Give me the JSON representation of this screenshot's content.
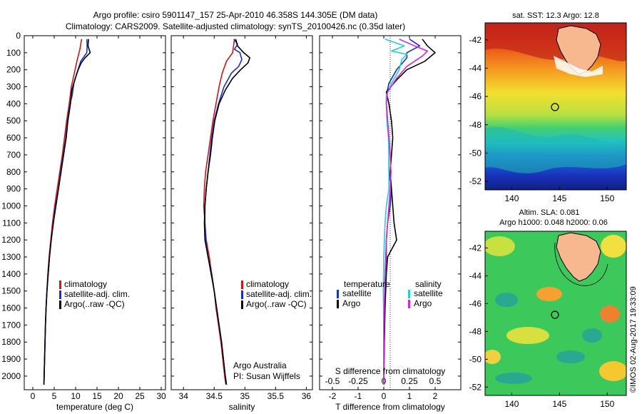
{
  "header": {
    "line1": "Argo profile: csiro 5901147_157 25-Apr-2010 46.358S 144.305E (DM data)",
    "line2": "Climatology: CARS2009. Satellite-adjusted climatology: synTS_20100426.nc (0.35d later)"
  },
  "colors": {
    "climatology": "#e01010",
    "satellite": "#1030e0",
    "argo": "#000000",
    "temperature_satellite": "#1030e0",
    "temperature_argo": "#000000",
    "salinity_satellite": "#20d0e0",
    "salinity_argo": "#e020e0"
  },
  "axes": {
    "depth_ticks": [
      "0",
      "100",
      "200",
      "300",
      "400",
      "500",
      "600",
      "700",
      "800",
      "900",
      "1000",
      "1100",
      "1200",
      "1300",
      "1400",
      "1500",
      "1600",
      "1700",
      "1800",
      "1900",
      "2000"
    ],
    "temperature": {
      "xlabel": "temperature (deg C)",
      "ticks": [
        "0",
        "5",
        "10",
        "15",
        "20",
        "25",
        "30"
      ]
    },
    "salinity": {
      "xlabel": "salinity",
      "ticks": [
        "34",
        "34.5",
        "35",
        "35.5",
        "36"
      ]
    },
    "difference": {
      "xlabel": "T difference from climatology",
      "top_label": "S difference from climatology",
      "t_ticks": [
        "-2",
        "-1",
        "0",
        "1",
        "2"
      ],
      "s_ticks": [
        "-0.5",
        "-0.25",
        "0",
        "0.25",
        "0.5"
      ]
    }
  },
  "legends": {
    "temperature": [
      "climatology",
      "satellite-adj. clim.",
      "Argo(..raw -QC)"
    ],
    "salinity": [
      "climatology",
      "satellite-adj. clim.",
      "Argo(..raw -QC)"
    ],
    "difference": {
      "temperature_title": "temperature",
      "salinity_title": "salinity",
      "temperature_items": [
        "satellite",
        "Argo"
      ],
      "salinity_items": [
        "satellite",
        "Argo"
      ]
    }
  },
  "credit": {
    "line1": "Argo Australia",
    "line2": "PI: Susan Wijffels"
  },
  "maps": {
    "sst": {
      "title": "sat. SST: 12.3 Argo: 12.8"
    },
    "sla": {
      "title1": "Altim. SLA: 0.081",
      "title2": "Argo h1000: 0.048 h2000: 0.06"
    },
    "lat_ticks": [
      "-42",
      "-44",
      "-46",
      "-48",
      "-50",
      "-52"
    ],
    "lon_ticks": [
      "140",
      "145",
      "150"
    ],
    "float_position": {
      "lon": 144.305,
      "lat": -46.358
    }
  },
  "stamp": "©IMOS 02-Aug-2017 19:33:09",
  "chart_data": [
    {
      "type": "line",
      "panel": "temperature",
      "xlabel": "temperature (deg C)",
      "ylabel": "",
      "xlim": [
        -2,
        31
      ],
      "ylim": [
        2080,
        0
      ],
      "series": [
        {
          "name": "climatology",
          "values": [
            [
              11.4,
              20
            ],
            [
              11.0,
              80
            ],
            [
              10.3,
              150
            ],
            [
              9.7,
              220
            ],
            [
              9.0,
              300
            ],
            [
              8.5,
              400
            ],
            [
              7.9,
              500
            ],
            [
              7.4,
              600
            ],
            [
              6.9,
              700
            ],
            [
              6.3,
              800
            ],
            [
              5.7,
              900
            ],
            [
              5.1,
              1000
            ],
            [
              4.6,
              1100
            ],
            [
              4.2,
              1200
            ],
            [
              3.8,
              1300
            ],
            [
              3.5,
              1400
            ],
            [
              3.3,
              1500
            ],
            [
              3.1,
              1600
            ],
            [
              2.95,
              1700
            ],
            [
              2.85,
              1800
            ],
            [
              2.75,
              1900
            ],
            [
              2.65,
              2000
            ],
            [
              2.6,
              2050
            ]
          ]
        },
        {
          "name": "satellite-adj. clim.",
          "values": [
            [
              12.6,
              20
            ],
            [
              12.7,
              60
            ],
            [
              12.6,
              100
            ],
            [
              11.2,
              150
            ],
            [
              10.3,
              220
            ],
            [
              9.6,
              280
            ],
            [
              9.2,
              350
            ],
            [
              8.7,
              400
            ],
            [
              8.1,
              500
            ],
            [
              7.7,
              600
            ],
            [
              7.1,
              700
            ],
            [
              6.5,
              800
            ],
            [
              6.0,
              900
            ],
            [
              5.3,
              1000
            ],
            [
              4.8,
              1100
            ],
            [
              4.3,
              1200
            ],
            [
              3.9,
              1300
            ],
            [
              3.6,
              1400
            ],
            [
              3.3,
              1500
            ],
            [
              3.1,
              1600
            ],
            [
              2.95,
              1700
            ],
            [
              2.85,
              1800
            ],
            [
              2.75,
              1900
            ],
            [
              2.65,
              2000
            ],
            [
              2.6,
              2050
            ]
          ]
        },
        {
          "name": "Argo(..raw -QC)",
          "values": [
            [
              13.0,
              20
            ],
            [
              12.9,
              60
            ],
            [
              13.4,
              100
            ],
            [
              12.2,
              130
            ],
            [
              11.3,
              160
            ],
            [
              10.6,
              200
            ],
            [
              9.8,
              260
            ],
            [
              9.1,
              320
            ],
            [
              8.8,
              400
            ],
            [
              8.2,
              500
            ],
            [
              7.8,
              600
            ],
            [
              7.2,
              700
            ],
            [
              6.6,
              800
            ],
            [
              6.0,
              900
            ],
            [
              5.4,
              1000
            ],
            [
              4.8,
              1100
            ],
            [
              4.3,
              1200
            ],
            [
              3.9,
              1300
            ],
            [
              3.6,
              1400
            ],
            [
              3.3,
              1500
            ],
            [
              3.1,
              1600
            ],
            [
              2.95,
              1700
            ],
            [
              2.85,
              1800
            ],
            [
              2.75,
              1900
            ],
            [
              2.65,
              2000
            ],
            [
              2.6,
              2050
            ]
          ]
        }
      ]
    },
    {
      "type": "line",
      "panel": "salinity",
      "xlabel": "salinity",
      "ylabel": "",
      "xlim": [
        33.8,
        36.1
      ],
      "ylim": [
        2080,
        0
      ],
      "series": [
        {
          "name": "climatology",
          "values": [
            [
              34.83,
              20
            ],
            [
              34.8,
              100
            ],
            [
              34.7,
              150
            ],
            [
              34.63,
              220
            ],
            [
              34.58,
              300
            ],
            [
              34.53,
              400
            ],
            [
              34.48,
              500
            ],
            [
              34.44,
              600
            ],
            [
              34.4,
              700
            ],
            [
              34.36,
              800
            ],
            [
              34.34,
              900
            ],
            [
              34.33,
              1000
            ],
            [
              34.35,
              1100
            ],
            [
              34.37,
              1200
            ],
            [
              34.42,
              1300
            ],
            [
              34.46,
              1400
            ],
            [
              34.5,
              1500
            ],
            [
              34.53,
              1600
            ],
            [
              34.57,
              1700
            ],
            [
              34.61,
              1800
            ],
            [
              34.64,
              1900
            ],
            [
              34.67,
              2000
            ],
            [
              34.69,
              2050
            ]
          ]
        },
        {
          "name": "satellite-adj. clim.",
          "values": [
            [
              34.82,
              20
            ],
            [
              34.88,
              50
            ],
            [
              34.83,
              80
            ],
            [
              34.92,
              100
            ],
            [
              34.95,
              140
            ],
            [
              34.9,
              180
            ],
            [
              34.78,
              220
            ],
            [
              34.66,
              300
            ],
            [
              34.57,
              400
            ],
            [
              34.5,
              500
            ],
            [
              34.46,
              600
            ],
            [
              34.43,
              700
            ],
            [
              34.4,
              800
            ],
            [
              34.37,
              900
            ],
            [
              34.35,
              1000
            ],
            [
              34.35,
              1100
            ],
            [
              34.36,
              1200
            ],
            [
              34.4,
              1300
            ],
            [
              34.46,
              1400
            ],
            [
              34.5,
              1500
            ],
            [
              34.54,
              1600
            ],
            [
              34.58,
              1700
            ],
            [
              34.62,
              1800
            ],
            [
              34.65,
              1900
            ],
            [
              34.68,
              2000
            ],
            [
              34.7,
              2050
            ]
          ]
        },
        {
          "name": "Argo(..raw -QC)",
          "values": [
            [
              34.85,
              20
            ],
            [
              34.88,
              60
            ],
            [
              34.98,
              100
            ],
            [
              35.08,
              130
            ],
            [
              35.05,
              160
            ],
            [
              34.93,
              200
            ],
            [
              34.8,
              250
            ],
            [
              34.68,
              320
            ],
            [
              34.58,
              400
            ],
            [
              34.51,
              500
            ],
            [
              34.47,
              600
            ],
            [
              34.44,
              700
            ],
            [
              34.4,
              800
            ],
            [
              34.37,
              900
            ],
            [
              34.35,
              1000
            ],
            [
              34.34,
              1100
            ],
            [
              34.35,
              1200
            ],
            [
              34.4,
              1300
            ],
            [
              34.45,
              1400
            ],
            [
              34.5,
              1500
            ],
            [
              34.54,
              1600
            ],
            [
              34.58,
              1700
            ],
            [
              34.62,
              1800
            ],
            [
              34.65,
              1900
            ],
            [
              34.68,
              2000
            ],
            [
              34.7,
              2050
            ]
          ]
        }
      ]
    },
    {
      "type": "line",
      "panel": "difference",
      "xlabel": "T difference from climatology",
      "ylabel": "",
      "xlim": [
        -2.5,
        3.0
      ],
      "ylim": [
        2080,
        0
      ],
      "series": [
        {
          "name": "temperature satellite",
          "values": [
            [
              1.0,
              20
            ],
            [
              1.4,
              60
            ],
            [
              0.9,
              100
            ],
            [
              0.9,
              130
            ],
            [
              0.5,
              200
            ],
            [
              0.2,
              280
            ],
            [
              0.1,
              350
            ],
            [
              0.1,
              400
            ],
            [
              0.15,
              500
            ],
            [
              0.2,
              600
            ],
            [
              0.2,
              700
            ],
            [
              0.2,
              800
            ],
            [
              0.3,
              900
            ],
            [
              0.25,
              1000
            ],
            [
              0.15,
              1100
            ],
            [
              0.1,
              1200
            ],
            [
              0.1,
              1300
            ],
            [
              0.05,
              1400
            ],
            [
              0.03,
              1600
            ],
            [
              0.02,
              1800
            ],
            [
              0.0,
              2050
            ]
          ]
        },
        {
          "name": "temperature Argo",
          "values": [
            [
              1.5,
              20
            ],
            [
              1.7,
              60
            ],
            [
              2.0,
              100
            ],
            [
              1.6,
              150
            ],
            [
              0.9,
              200
            ],
            [
              0.5,
              260
            ],
            [
              0.1,
              330
            ],
            [
              0.2,
              400
            ],
            [
              0.3,
              500
            ],
            [
              0.35,
              600
            ],
            [
              0.3,
              700
            ],
            [
              0.25,
              800
            ],
            [
              0.3,
              900
            ],
            [
              0.35,
              1000
            ],
            [
              0.4,
              1100
            ],
            [
              0.5,
              1200
            ],
            [
              0.15,
              1300
            ],
            [
              0.1,
              1400
            ],
            [
              0.05,
              1600
            ],
            [
              0.02,
              1800
            ],
            [
              0.0,
              2050
            ]
          ]
        },
        {
          "name": "salinity satellite",
          "values": [
            [
              0.05,
              20
            ],
            [
              0.8,
              60
            ],
            [
              0.3,
              90
            ],
            [
              0.9,
              110
            ],
            [
              0.7,
              140
            ],
            [
              0.6,
              200
            ],
            [
              0.3,
              280
            ],
            [
              0.1,
              350
            ],
            [
              0.12,
              500
            ],
            [
              0.18,
              600
            ],
            [
              0.2,
              700
            ],
            [
              0.2,
              800
            ],
            [
              0.2,
              900
            ],
            [
              0.1,
              1000
            ],
            [
              0.05,
              1100
            ],
            [
              0.0,
              1300
            ],
            [
              -0.02,
              1500
            ],
            [
              0.0,
              1700
            ],
            [
              0.0,
              2050
            ]
          ]
        },
        {
          "name": "salinity Argo",
          "values": [
            [
              0.6,
              20
            ],
            [
              1.2,
              60
            ],
            [
              1.7,
              90
            ],
            [
              1.5,
              120
            ],
            [
              0.9,
              180
            ],
            [
              0.5,
              250
            ],
            [
              0.15,
              330
            ],
            [
              0.1,
              400
            ],
            [
              0.15,
              500
            ],
            [
              0.2,
              600
            ],
            [
              0.25,
              700
            ],
            [
              0.28,
              800
            ],
            [
              0.25,
              900
            ],
            [
              0.2,
              1000
            ],
            [
              0.15,
              1100
            ],
            [
              0.1,
              1200
            ],
            [
              0.05,
              1400
            ],
            [
              0.0,
              1700
            ],
            [
              0.0,
              2050
            ]
          ]
        }
      ]
    }
  ]
}
